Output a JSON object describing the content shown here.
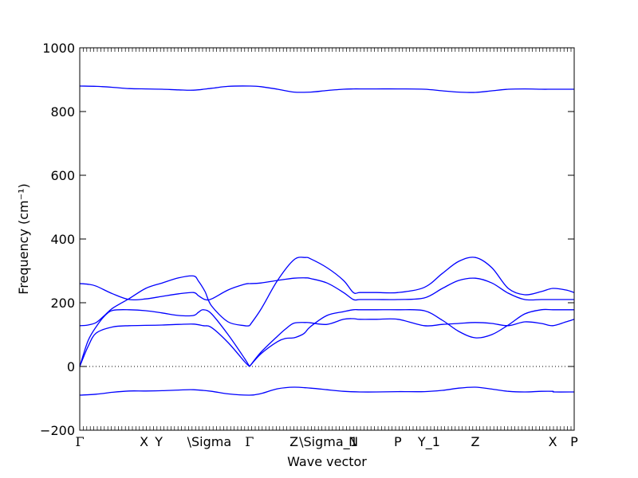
{
  "chart_data": {
    "type": "line",
    "title": "",
    "xlabel": "Wave vector",
    "ylabel": "Frequency (cm⁻¹)",
    "ylim": [
      -200,
      1000
    ],
    "yticks": [
      -200,
      0,
      200,
      400,
      600,
      800,
      1000
    ],
    "xlim": [
      0,
      3.0
    ],
    "xticks": [
      {
        "label": "Γ",
        "x": 0.0
      },
      {
        "label": "X",
        "x": 0.39
      },
      {
        "label": "Y",
        "x": 0.48
      },
      {
        "label": "\\Sigma",
        "x": 0.69
      },
      {
        "label": "Γ",
        "x": 1.03
      },
      {
        "label": "Z",
        "x": 1.3
      },
      {
        "label": "\\Sigma_1",
        "x": 1.37
      },
      {
        "label": "N",
        "x": 1.66
      },
      {
        "label": "P",
        "x": 1.93
      },
      {
        "label": "Y_1",
        "x": 2.09
      },
      {
        "label": "Z",
        "x": 2.4
      },
      {
        "label": "X",
        "x": 2.87
      },
      {
        "label": "P",
        "x": 3.0
      }
    ],
    "zero_line": "dotted",
    "grid": false,
    "line_color": "#0000ff",
    "series": [
      {
        "x": [
          0,
          0.1,
          0.2,
          0.3,
          0.4,
          0.5,
          0.6,
          0.69,
          0.8,
          0.9,
          1.03,
          1.1,
          1.2,
          1.3,
          1.4,
          1.5,
          1.6,
          1.7,
          1.8,
          1.93,
          2.09,
          2.2,
          2.3,
          2.4,
          2.5,
          2.6,
          2.7,
          2.8,
          2.87,
          2.88,
          3.0
        ],
        "y": [
          -90,
          -87,
          -81,
          -77,
          -77,
          -76,
          -74,
          -73,
          -78,
          -86,
          -90,
          -85,
          -70,
          -65,
          -68,
          -73,
          -78,
          -80,
          -80,
          -79,
          -79,
          -75,
          -68,
          -65,
          -71,
          -78,
          -80,
          -78,
          -78,
          -80,
          -80
        ]
      },
      {
        "x": [
          0,
          0.1,
          0.2,
          0.3,
          0.4,
          0.5,
          0.6,
          0.69,
          0.8,
          0.9,
          1.03,
          1.1,
          1.2,
          1.3,
          1.4,
          1.5,
          1.6,
          1.66,
          1.7,
          1.8,
          1.93,
          2.09,
          2.2,
          2.3,
          2.4,
          2.5,
          2.6,
          2.7,
          2.8,
          2.87,
          3.0
        ],
        "y": [
          880,
          879,
          876,
          872,
          871,
          870,
          868,
          867,
          873,
          879,
          880,
          878,
          870,
          861,
          861,
          866,
          870,
          871,
          871,
          871,
          871,
          870,
          865,
          861,
          860,
          865,
          870,
          871,
          870,
          870,
          870
        ]
      },
      {
        "x": [
          0,
          0.05,
          0.1,
          0.2,
          0.3,
          0.4,
          0.5,
          0.6,
          0.69,
          0.75,
          0.8,
          0.9,
          1.0,
          1.03
        ],
        "y": [
          0,
          62,
          105,
          124,
          128,
          129,
          130,
          132,
          133,
          128,
          122,
          75,
          15,
          0
        ]
      },
      {
        "x": [
          0,
          0.05,
          0.1,
          0.15,
          0.2,
          0.3,
          0.4,
          0.5,
          0.6,
          0.69,
          0.72,
          0.75,
          0.8,
          0.9,
          1.0,
          1.03
        ],
        "y": [
          0,
          80,
          125,
          158,
          176,
          178,
          175,
          168,
          160,
          160,
          170,
          178,
          165,
          100,
          25,
          0
        ]
      },
      {
        "x": [
          0,
          0.05,
          0.1,
          0.15,
          0.2,
          0.3,
          0.4,
          0.5,
          0.6,
          0.69,
          0.72,
          0.76,
          0.8,
          0.9,
          1.0,
          1.03
        ],
        "y": [
          128,
          130,
          138,
          160,
          183,
          213,
          245,
          262,
          278,
          284,
          268,
          235,
          190,
          140,
          128,
          128
        ]
      },
      {
        "x": [
          0,
          0.05,
          0.1,
          0.2,
          0.3,
          0.4,
          0.5,
          0.6,
          0.69,
          0.72,
          0.76,
          0.8,
          0.9,
          1.0,
          1.03
        ],
        "y": [
          260,
          258,
          252,
          228,
          210,
          212,
          220,
          228,
          232,
          222,
          210,
          212,
          240,
          258,
          260
        ]
      },
      {
        "x": [
          1.03,
          1.1,
          1.2,
          1.25,
          1.3,
          1.35,
          1.37,
          1.4,
          1.5,
          1.6,
          1.66,
          1.7,
          1.8,
          1.93,
          2.09,
          2.2,
          2.3,
          2.4,
          2.5,
          2.6,
          2.7,
          2.8,
          2.87,
          2.95,
          3.0
        ],
        "y": [
          0,
          40,
          78,
          88,
          90,
          100,
          108,
          125,
          160,
          172,
          178,
          178,
          178,
          178,
          175,
          145,
          110,
          90,
          100,
          130,
          165,
          178,
          178,
          178,
          178
        ]
      },
      {
        "x": [
          1.03,
          1.1,
          1.2,
          1.25,
          1.3,
          1.37,
          1.4,
          1.5,
          1.6,
          1.66,
          1.7,
          1.8,
          1.93,
          2.09,
          2.2,
          2.3,
          2.4,
          2.5,
          2.6,
          2.7,
          2.8,
          2.87,
          2.95,
          3.0
        ],
        "y": [
          0,
          45,
          95,
          118,
          136,
          138,
          137,
          132,
          148,
          150,
          148,
          148,
          148,
          128,
          132,
          135,
          138,
          135,
          128,
          140,
          135,
          128,
          140,
          148
        ]
      },
      {
        "x": [
          1.03,
          1.1,
          1.2,
          1.3,
          1.37,
          1.4,
          1.5,
          1.6,
          1.66,
          1.7,
          1.8,
          1.93,
          2.09,
          2.2,
          2.3,
          2.4,
          2.5,
          2.6,
          2.7,
          2.8,
          2.87,
          2.95,
          3.0
        ],
        "y": [
          128,
          180,
          270,
          335,
          342,
          338,
          310,
          270,
          232,
          232,
          232,
          232,
          248,
          292,
          330,
          342,
          310,
          245,
          225,
          235,
          245,
          240,
          232
        ]
      },
      {
        "x": [
          1.03,
          1.1,
          1.2,
          1.3,
          1.37,
          1.4,
          1.5,
          1.6,
          1.66,
          1.7,
          1.8,
          1.93,
          2.09,
          2.2,
          2.3,
          2.4,
          2.5,
          2.6,
          2.7,
          2.8,
          2.87,
          3.0
        ],
        "y": [
          260,
          262,
          270,
          277,
          278,
          276,
          262,
          232,
          210,
          210,
          210,
          210,
          215,
          245,
          270,
          277,
          262,
          230,
          210,
          210,
          210,
          210
        ]
      }
    ]
  }
}
